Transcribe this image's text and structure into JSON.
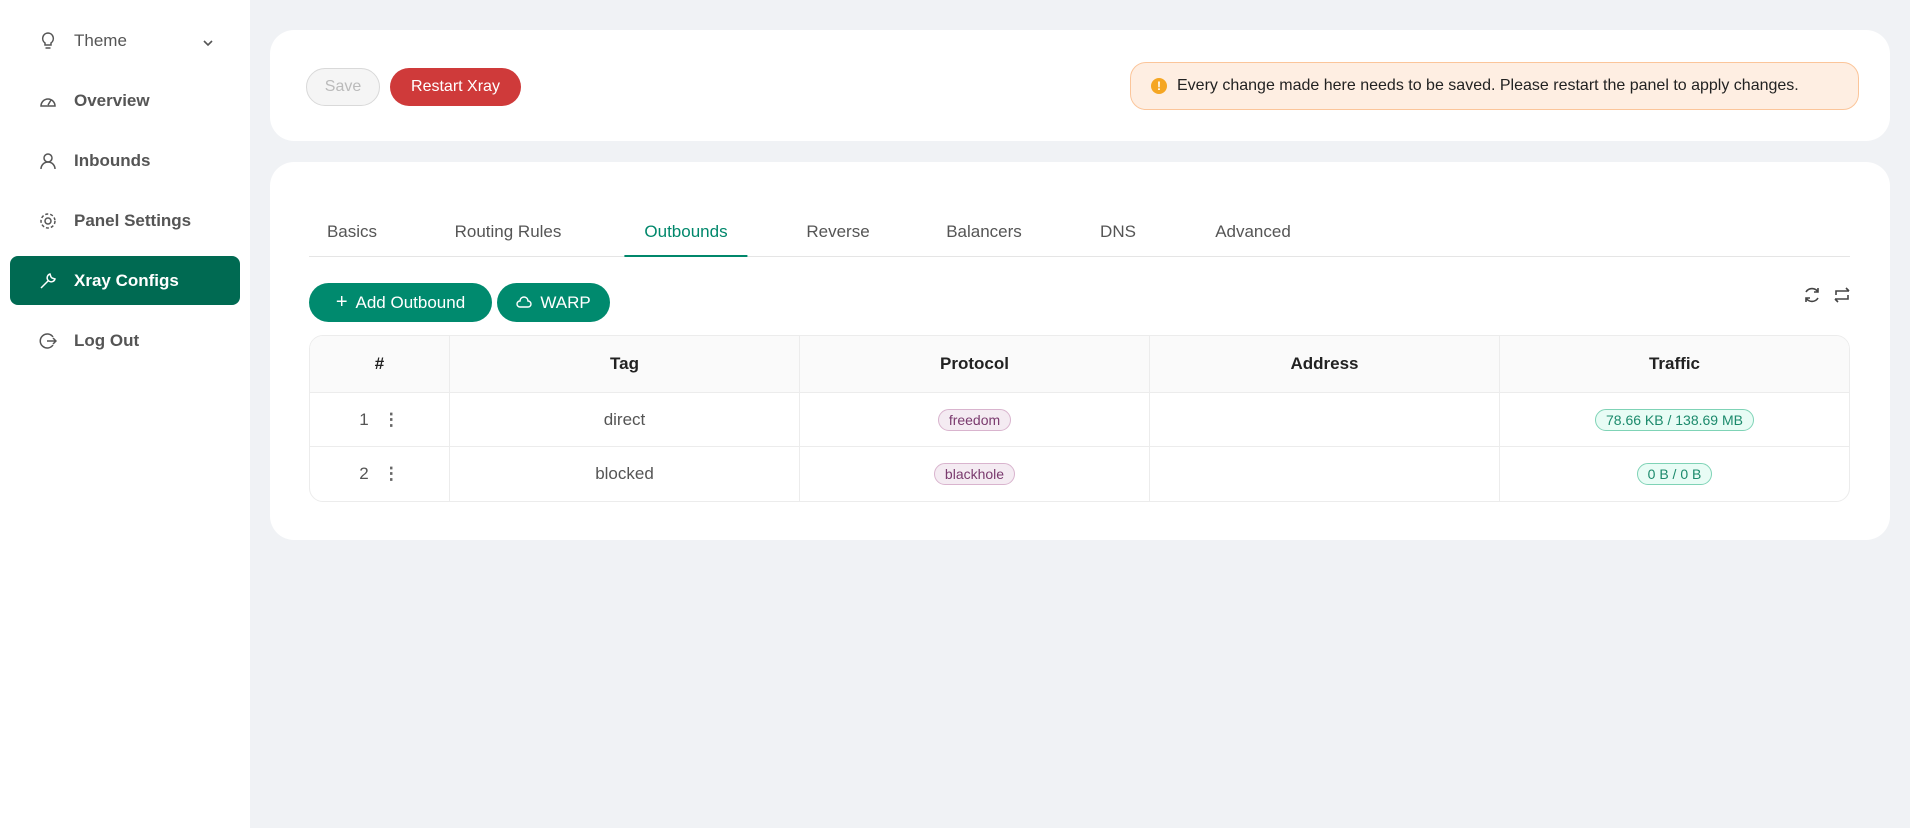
{
  "sidebar": {
    "items": [
      {
        "label": "Theme",
        "icon": "bulb-icon"
      },
      {
        "label": "Overview",
        "icon": "dashboard-icon"
      },
      {
        "label": "Inbounds",
        "icon": "user-icon"
      },
      {
        "label": "Panel Settings",
        "icon": "gear-icon"
      },
      {
        "label": "Xray Configs",
        "icon": "wrench-icon",
        "active": true
      },
      {
        "label": "Log Out",
        "icon": "logout-icon"
      }
    ]
  },
  "toolbar": {
    "save_label": "Save",
    "restart_label": "Restart Xray",
    "alert": "Every change made here needs to be saved. Please restart the panel to apply changes."
  },
  "tabs": [
    "Basics",
    "Routing Rules",
    "Outbounds",
    "Reverse",
    "Balancers",
    "DNS",
    "Advanced"
  ],
  "active_tab": "Outbounds",
  "actions": {
    "add_outbound": "Add Outbound",
    "warp": "WARP"
  },
  "table": {
    "headers": [
      "#",
      "Tag",
      "Protocol",
      "Address",
      "Traffic"
    ],
    "rows": [
      {
        "num": "1",
        "tag": "direct",
        "protocol": "freedom",
        "address": "",
        "traffic": "78.66 KB / 138.69 MB"
      },
      {
        "num": "2",
        "tag": "blocked",
        "protocol": "blackhole",
        "address": "",
        "traffic": "0 B / 0 B"
      }
    ]
  },
  "colors": {
    "accent": "#008a6e",
    "active_sidebar": "#006a52",
    "danger": "#cf3a3a",
    "warning": "#f5a623"
  }
}
